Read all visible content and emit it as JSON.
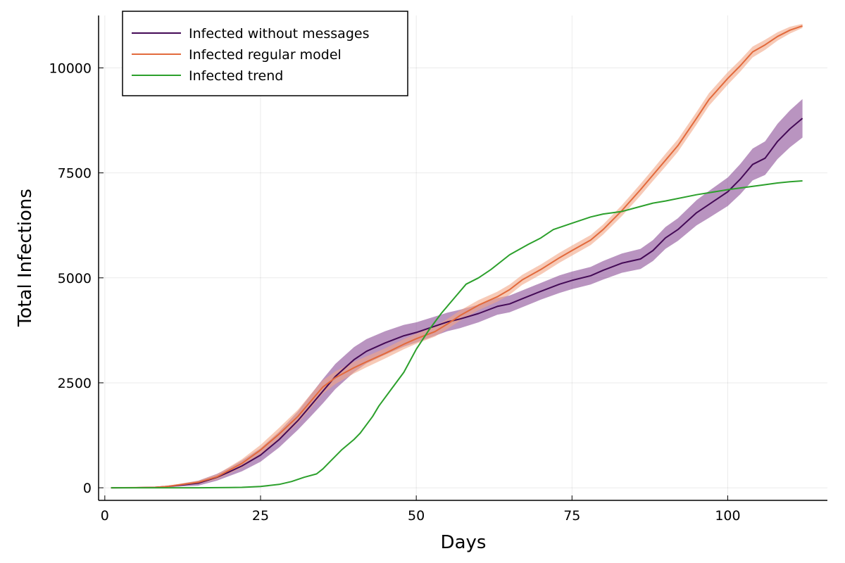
{
  "chart_data": {
    "type": "line",
    "title": "",
    "xlabel": "Days",
    "ylabel": "Total Infections",
    "xlim": [
      -1,
      116
    ],
    "ylim": [
      -300,
      11450
    ],
    "xticks": [
      0,
      25,
      50,
      75,
      100
    ],
    "yticks": [
      0,
      2500,
      5000,
      7500,
      10000
    ],
    "grid": true,
    "legend": "top-left",
    "series": [
      {
        "name": "Infected without messages",
        "color": "#440a56",
        "band_color": "#8a4d96",
        "x": [
          1,
          5,
          8,
          10,
          12,
          15,
          18,
          20,
          22,
          25,
          28,
          31,
          33,
          35,
          37,
          40,
          42,
          45,
          48,
          50,
          53,
          55,
          57,
          60,
          63,
          65,
          67,
          70,
          73,
          75,
          78,
          80,
          83,
          86,
          88,
          90,
          92,
          95,
          97,
          100,
          102,
          104,
          106,
          108,
          110,
          112
        ],
        "values": [
          0,
          2,
          10,
          30,
          60,
          110,
          250,
          380,
          520,
          780,
          1150,
          1600,
          1950,
          2300,
          2650,
          3050,
          3250,
          3450,
          3620,
          3700,
          3850,
          3950,
          4020,
          4150,
          4320,
          4380,
          4500,
          4680,
          4850,
          4940,
          5050,
          5180,
          5350,
          5450,
          5650,
          5950,
          6150,
          6550,
          6750,
          7050,
          7350,
          7700,
          7850,
          8250,
          8550,
          8800
        ],
        "band": [
          0,
          2,
          10,
          20,
          30,
          60,
          80,
          100,
          130,
          160,
          190,
          220,
          260,
          290,
          300,
          300,
          290,
          280,
          260,
          240,
          230,
          220,
          220,
          210,
          200,
          200,
          200,
          200,
          210,
          210,
          210,
          220,
          230,
          240,
          250,
          260,
          270,
          300,
          320,
          340,
          360,
          380,
          400,
          420,
          440,
          460
        ]
      },
      {
        "name": "Infected regular model",
        "color": "#e26a3c",
        "band_color": "#f2a687",
        "x": [
          1,
          5,
          8,
          10,
          12,
          15,
          18,
          20,
          22,
          25,
          28,
          31,
          33,
          35,
          37,
          40,
          42,
          45,
          48,
          50,
          53,
          55,
          57,
          60,
          63,
          65,
          67,
          70,
          73,
          75,
          78,
          80,
          83,
          86,
          88,
          90,
          92,
          95,
          97,
          100,
          102,
          104,
          106,
          108,
          110,
          112
        ],
        "values": [
          0,
          3,
          10,
          30,
          70,
          130,
          260,
          420,
          580,
          900,
          1280,
          1700,
          2050,
          2400,
          2620,
          2860,
          3000,
          3200,
          3420,
          3550,
          3720,
          3900,
          4100,
          4350,
          4550,
          4720,
          4950,
          5200,
          5480,
          5650,
          5900,
          6150,
          6600,
          7100,
          7450,
          7800,
          8150,
          8800,
          9250,
          9750,
          10050,
          10380,
          10550,
          10750,
          10900,
          11000
        ],
        "band": [
          0,
          2,
          8,
          15,
          25,
          40,
          60,
          80,
          100,
          120,
          150,
          160,
          170,
          160,
          150,
          140,
          130,
          120,
          120,
          120,
          120,
          120,
          120,
          120,
          120,
          120,
          120,
          120,
          120,
          120,
          120,
          120,
          130,
          140,
          140,
          150,
          150,
          150,
          150,
          150,
          140,
          130,
          120,
          100,
          80,
          50
        ]
      },
      {
        "name": "Infected trend",
        "color": "#2ca02c",
        "x": [
          1,
          5,
          10,
          15,
          20,
          22,
          25,
          28,
          30,
          32,
          34,
          35,
          36,
          38,
          40,
          41,
          43,
          44,
          46,
          48,
          50,
          52,
          54,
          56,
          58,
          60,
          62,
          65,
          68,
          70,
          72,
          75,
          78,
          80,
          83,
          86,
          88,
          90,
          95,
          100,
          105,
          108,
          110,
          112
        ],
        "values": [
          0,
          0,
          0,
          0,
          5,
          10,
          30,
          80,
          150,
          250,
          330,
          450,
          600,
          900,
          1150,
          1300,
          1700,
          1950,
          2350,
          2750,
          3300,
          3750,
          4150,
          4500,
          4850,
          5000,
          5200,
          5550,
          5800,
          5950,
          6150,
          6300,
          6450,
          6520,
          6580,
          6700,
          6780,
          6830,
          6980,
          7100,
          7200,
          7260,
          7290,
          7310
        ]
      }
    ]
  }
}
